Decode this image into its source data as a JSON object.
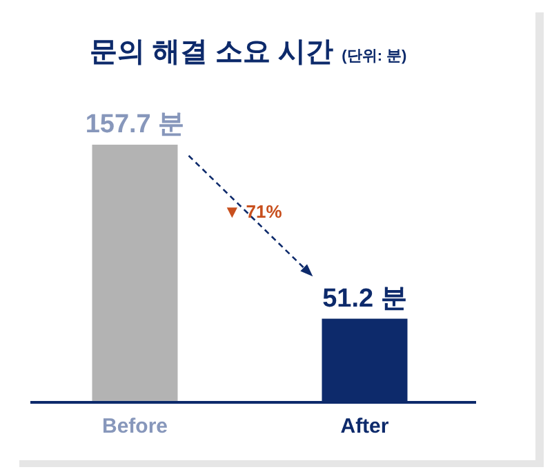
{
  "chart_data": {
    "type": "bar",
    "title": "문의 해결 소요 시간",
    "subtitle": "(단위: 분)",
    "categories": [
      "Before",
      "After"
    ],
    "values": [
      157.7,
      51.2
    ],
    "colors": [
      "#b3b3b3",
      "#0d2a6b"
    ],
    "value_labels": [
      "157.7 분",
      "51.2 분"
    ],
    "annotations": [
      "▼ 71%"
    ]
  }
}
